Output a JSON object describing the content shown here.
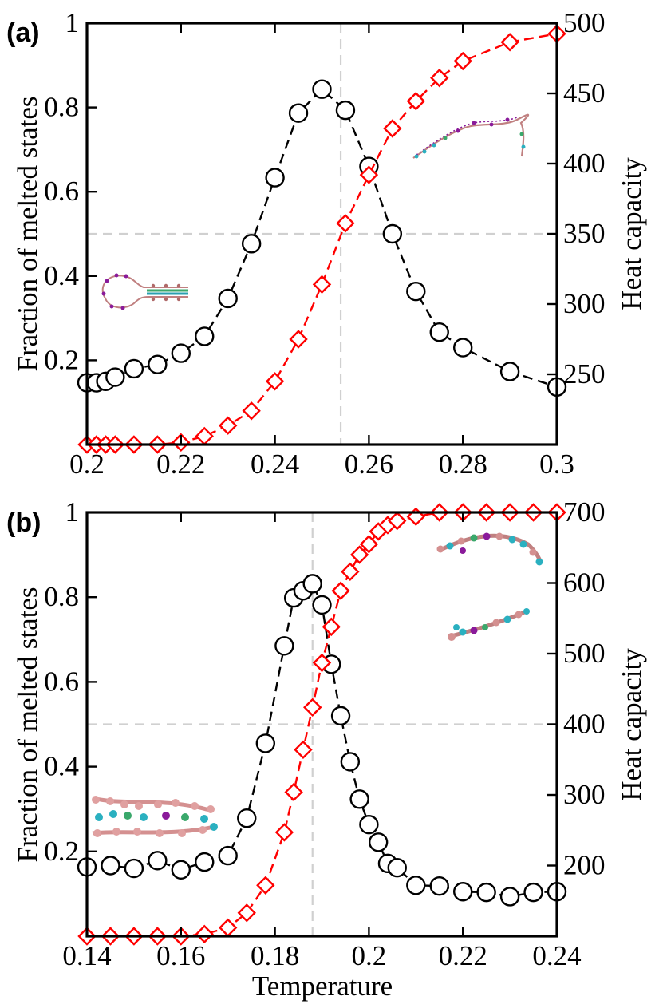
{
  "chart_data": [
    {
      "type": "line",
      "panel_label": "(a)",
      "xlabel": "",
      "ylabel": "Fraction of melted states",
      "y2label": "Heat capacity",
      "xlim": [
        0.2,
        0.3
      ],
      "ylim": [
        0,
        1
      ],
      "y2lim": [
        200,
        500
      ],
      "x_ticks": [
        "0.2",
        "0.22",
        "0.24",
        "0.26",
        "0.28",
        "0.3"
      ],
      "y_ticks": [
        "0.2",
        "0.4",
        "0.6",
        "0.8",
        "1"
      ],
      "y2_ticks": [
        "250",
        "300",
        "350",
        "400",
        "450",
        "500"
      ],
      "guides": {
        "vertical_x": 0.254,
        "horizontal_y": 0.5
      },
      "series": [
        {
          "axis": "right",
          "marker": "circle",
          "color": "#000000",
          "x": [
            0.2,
            0.202,
            0.204,
            0.206,
            0.21,
            0.215,
            0.22,
            0.225,
            0.23,
            0.235,
            0.24,
            0.245,
            0.25,
            0.255,
            0.26,
            0.265,
            0.27,
            0.275,
            0.28,
            0.29,
            0.3
          ],
          "values": [
            244,
            244,
            245,
            248,
            254,
            257,
            265,
            277,
            304,
            343,
            390,
            436,
            453,
            438,
            398,
            350,
            309,
            280,
            269,
            252,
            241
          ]
        },
        {
          "axis": "left",
          "marker": "diamond",
          "color": "#ff0000",
          "x": [
            0.2,
            0.202,
            0.204,
            0.206,
            0.21,
            0.215,
            0.22,
            0.225,
            0.23,
            0.235,
            0.24,
            0.245,
            0.25,
            0.255,
            0.26,
            0.265,
            0.27,
            0.275,
            0.28,
            0.29,
            0.3
          ],
          "values": [
            0.0,
            0.0,
            0.0,
            0.0,
            0.0,
            0.0,
            0.005,
            0.02,
            0.045,
            0.08,
            0.15,
            0.25,
            0.38,
            0.525,
            0.64,
            0.75,
            0.815,
            0.87,
            0.91,
            0.955,
            0.975
          ]
        }
      ]
    },
    {
      "type": "line",
      "panel_label": "(b)",
      "xlabel": "Temperature",
      "ylabel": "Fraction of melted states",
      "y2label": "Heat capacity",
      "xlim": [
        0.14,
        0.24
      ],
      "ylim": [
        0,
        1
      ],
      "y2lim": [
        100,
        700
      ],
      "x_ticks": [
        "0.14",
        "0.16",
        "0.18",
        "0.2",
        "0.22",
        "0.24"
      ],
      "y_ticks": [
        "0.2",
        "0.4",
        "0.6",
        "0.8",
        "1"
      ],
      "y2_ticks": [
        "200",
        "300",
        "400",
        "500",
        "600",
        "700"
      ],
      "guides": {
        "vertical_x": 0.188,
        "horizontal_y": 0.5
      },
      "series": [
        {
          "axis": "right",
          "marker": "circle",
          "color": "#000000",
          "x": [
            0.14,
            0.145,
            0.15,
            0.155,
            0.16,
            0.165,
            0.17,
            0.174,
            0.178,
            0.182,
            0.184,
            0.186,
            0.188,
            0.19,
            0.192,
            0.194,
            0.196,
            0.198,
            0.2,
            0.202,
            0.204,
            0.206,
            0.21,
            0.215,
            0.22,
            0.225,
            0.23,
            0.235,
            0.24
          ],
          "values": [
            198,
            200,
            196,
            207,
            194,
            205,
            214,
            267,
            373,
            511,
            579,
            589,
            599,
            569,
            485,
            412,
            347,
            294,
            258,
            233,
            203,
            197,
            172,
            171,
            163,
            162,
            156,
            162,
            163
          ]
        },
        {
          "axis": "left",
          "marker": "diamond",
          "color": "#ff0000",
          "x": [
            0.14,
            0.145,
            0.15,
            0.155,
            0.16,
            0.165,
            0.17,
            0.174,
            0.178,
            0.182,
            0.184,
            0.186,
            0.188,
            0.19,
            0.192,
            0.194,
            0.196,
            0.198,
            0.2,
            0.202,
            0.204,
            0.206,
            0.21,
            0.215,
            0.22,
            0.225,
            0.23,
            0.235,
            0.24
          ],
          "values": [
            0.0,
            0.0,
            0.0,
            0.0,
            0.0,
            0.005,
            0.02,
            0.055,
            0.12,
            0.245,
            0.34,
            0.44,
            0.54,
            0.645,
            0.73,
            0.815,
            0.86,
            0.9,
            0.925,
            0.955,
            0.97,
            0.98,
            0.99,
            1.0,
            1.0,
            1.0,
            1.0,
            1.0,
            1.0
          ]
        }
      ]
    }
  ]
}
